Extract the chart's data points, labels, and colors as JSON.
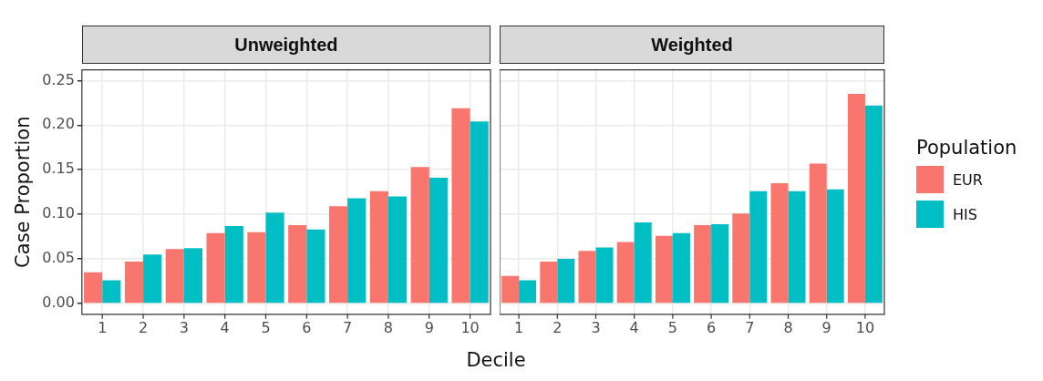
{
  "chart_data": [
    {
      "type": "bar",
      "title": "Unweighted",
      "xlabel": "Decile",
      "ylabel": "Case Proportion",
      "categories": [
        "1",
        "2",
        "3",
        "4",
        "5",
        "6",
        "7",
        "8",
        "9",
        "10"
      ],
      "series": [
        {
          "name": "EUR",
          "color": "#f8766d",
          "values": [
            0.035,
            0.047,
            0.061,
            0.079,
            0.08,
            0.088,
            0.109,
            0.126,
            0.153,
            0.219
          ]
        },
        {
          "name": "HIS",
          "color": "#00bfc4",
          "values": [
            0.026,
            0.055,
            0.062,
            0.087,
            0.102,
            0.083,
            0.118,
            0.12,
            0.141,
            0.204
          ]
        }
      ],
      "ylim": [
        -0.012,
        0.262
      ],
      "yticks": [
        {
          "value": 0,
          "label": "0.00"
        },
        0.05,
        {
          "value": 0.1,
          "label": "0.10"
        },
        0.15,
        {
          "value": 0.2,
          "label": "0.20"
        },
        0.25
      ],
      "grid": true,
      "legend": "right",
      "legend_title": "Population"
    },
    {
      "type": "bar",
      "title": "Weighted",
      "categories": [
        "1",
        "2",
        "3",
        "4",
        "5",
        "6",
        "7",
        "8",
        "9",
        "10"
      ],
      "series": [
        {
          "color": "#f8766d",
          "values": [
            0.031,
            0.047,
            0.059,
            0.069,
            0.076,
            0.088,
            0.101,
            0.135,
            0.157,
            0.235
          ]
        },
        {
          "color": "#00bfc4",
          "values": [
            0.026,
            0.05,
            0.063,
            0.091,
            0.079,
            0.089,
            0.126,
            0.126,
            0.128,
            0.222
          ]
        }
      ],
      "ylim": [
        -0.012,
        0.262
      ],
      "yticks": [
        0,
        0.05,
        0.1,
        0.15,
        0.2,
        0.25
      ],
      "grid": true,
      "tick_labels": "x"
    }
  ]
}
